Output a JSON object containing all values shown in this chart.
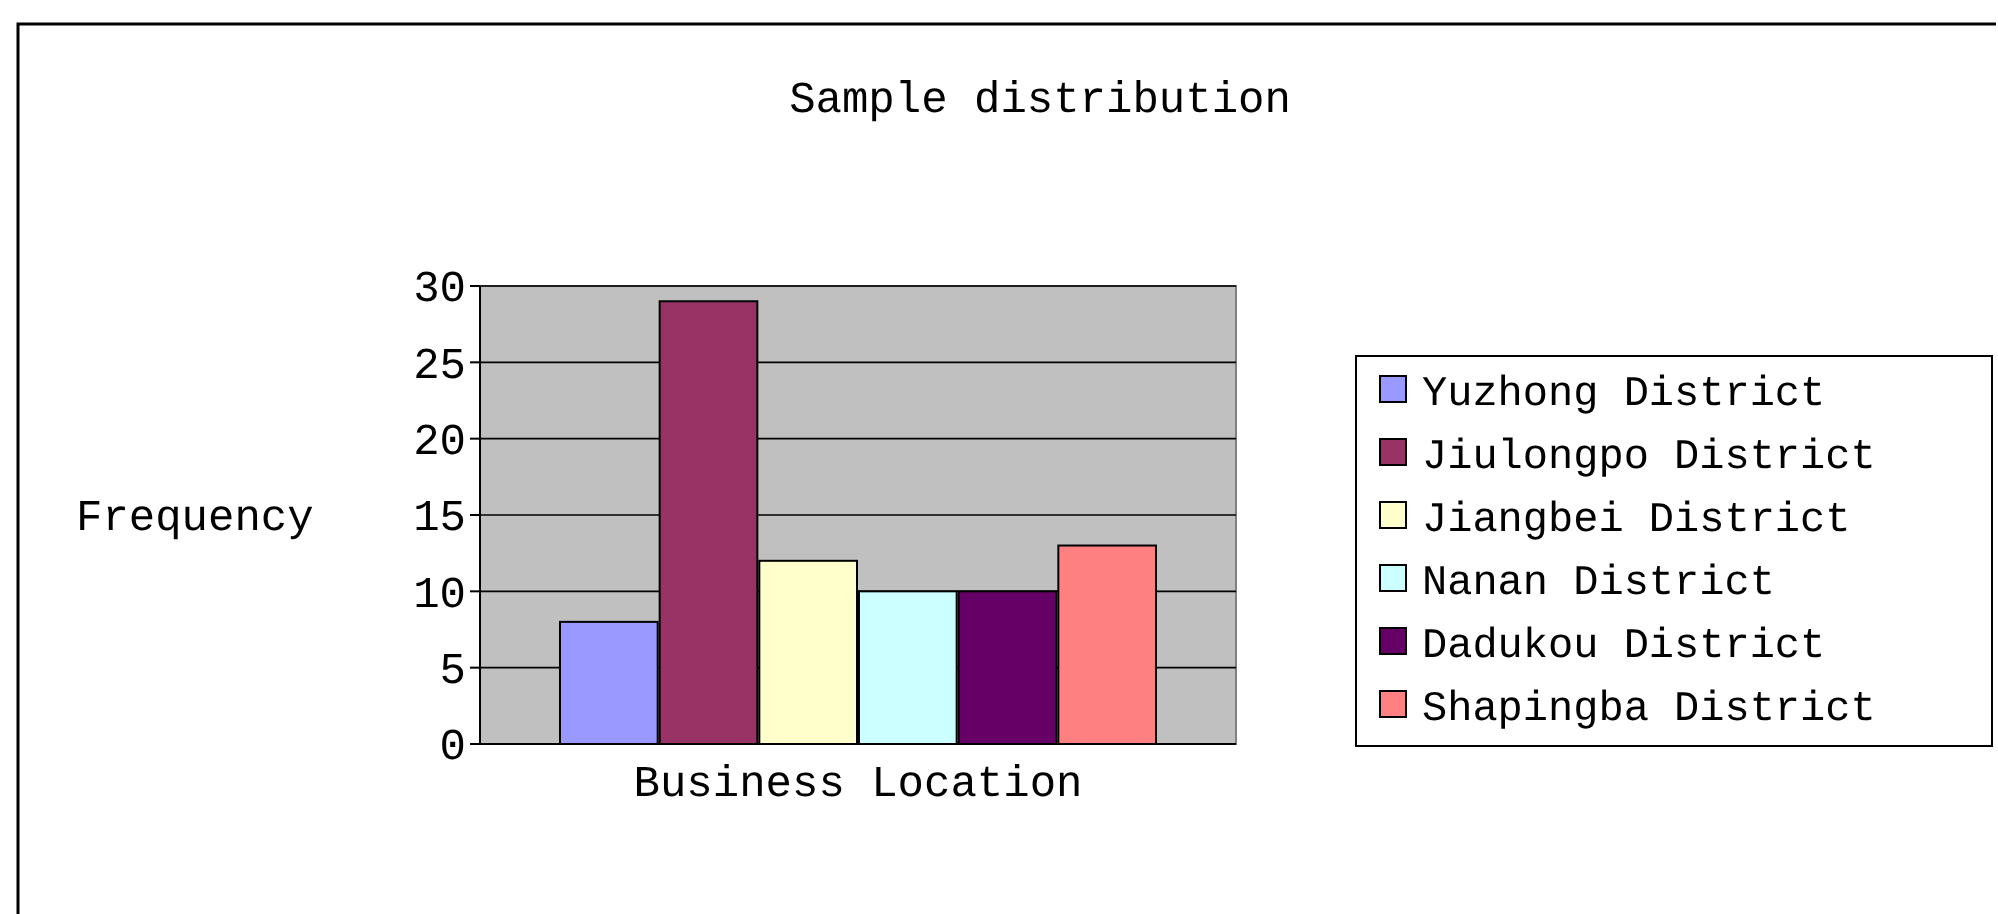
{
  "chart_data": {
    "type": "bar",
    "title": "Sample distribution",
    "ylabel": "Frequency",
    "xlabel": "Business Location",
    "categories": [
      null,
      null,
      null,
      null,
      null,
      null
    ],
    "stacked": true,
    "series": [
      {
        "name": "Yuzhong District",
        "color": "#9999ff",
        "values": [
          8,
          null,
          null,
          null,
          null,
          null
        ]
      },
      {
        "name": "Jiulongpo District",
        "color": "#993366",
        "values": [
          null,
          29,
          null,
          null,
          null,
          null
        ]
      },
      {
        "name": "Jiangbei District",
        "color": "#ffffcc",
        "values": [
          null,
          null,
          12,
          null,
          null,
          null
        ]
      },
      {
        "name": "Nanan District",
        "color": "#ccffff",
        "values": [
          null,
          null,
          null,
          10,
          null,
          null
        ]
      },
      {
        "name": "Dadukou District",
        "color": "#660066",
        "values": [
          null,
          null,
          null,
          null,
          10,
          null
        ]
      },
      {
        "name": "Shapingba District",
        "color": "#ff8080",
        "values": [
          null,
          null,
          null,
          null,
          null,
          13
        ]
      }
    ],
    "ylim": [
      0,
      30
    ],
    "yticks": [
      0,
      5,
      10,
      15,
      20,
      25,
      30
    ],
    "grid": "y",
    "legend": "right"
  }
}
